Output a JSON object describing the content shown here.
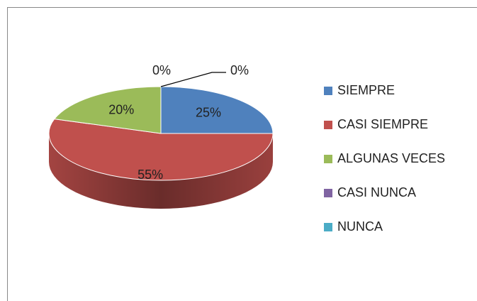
{
  "chart_data": {
    "type": "pie",
    "categories": [
      "SIEMPRE",
      "CASI SIEMPRE",
      "ALGUNAS VECES",
      "CASI NUNCA",
      "NUNCA"
    ],
    "values": [
      25,
      55,
      20,
      0,
      0
    ],
    "value_labels": [
      "25%",
      "55%",
      "20%",
      "0%",
      "0%"
    ],
    "colors": [
      "#4f81bd",
      "#c0504d",
      "#9bbb59",
      "#8064a2",
      "#4bacc6"
    ],
    "legend": "right"
  }
}
